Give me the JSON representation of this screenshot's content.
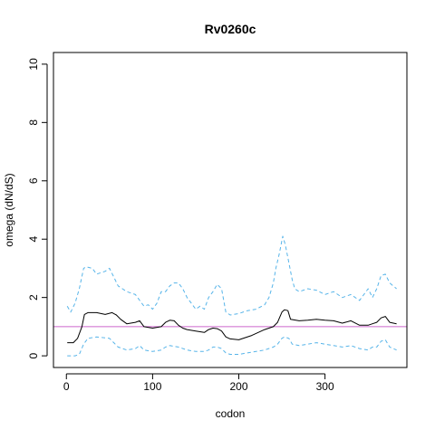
{
  "chart_data": {
    "type": "line",
    "title": "Rv0260c",
    "xlabel": "codon",
    "ylabel": "omega (dN/dS)",
    "xlim": [
      -15,
      395
    ],
    "ylim": [
      -0.4,
      10.4
    ],
    "xticks": [
      0,
      100,
      200,
      300
    ],
    "yticks": [
      0,
      2,
      4,
      6,
      8,
      10
    ],
    "grid": false,
    "legend": "none",
    "reference_line": {
      "y": 1,
      "color": "#cc66cc"
    },
    "series": [
      {
        "style": "solid",
        "color": "#000000",
        "x": [
          1,
          8,
          13,
          18,
          21,
          25,
          35,
          45,
          53,
          58,
          63,
          70,
          80,
          85,
          90,
          100,
          110,
          115,
          120,
          125,
          130,
          135,
          140,
          150,
          160,
          165,
          170,
          175,
          180,
          185,
          190,
          200,
          215,
          230,
          240,
          245,
          250,
          253,
          257,
          260,
          270,
          280,
          290,
          300,
          310,
          320,
          330,
          340,
          350,
          355,
          360,
          365,
          370,
          375,
          383
        ],
        "y": [
          0.45,
          0.45,
          0.6,
          1.0,
          1.42,
          1.48,
          1.48,
          1.42,
          1.48,
          1.4,
          1.25,
          1.1,
          1.15,
          1.2,
          1.0,
          0.95,
          1.0,
          1.15,
          1.22,
          1.2,
          1.05,
          0.95,
          0.9,
          0.85,
          0.8,
          0.9,
          0.95,
          0.93,
          0.85,
          0.65,
          0.58,
          0.55,
          0.7,
          0.9,
          1.0,
          1.15,
          1.5,
          1.58,
          1.55,
          1.25,
          1.2,
          1.22,
          1.25,
          1.22,
          1.2,
          1.12,
          1.2,
          1.05,
          1.05,
          1.1,
          1.15,
          1.3,
          1.35,
          1.15,
          1.1
        ]
      },
      {
        "style": "dashed",
        "color": "#56b4e9",
        "x": [
          1,
          5,
          10,
          15,
          20,
          23,
          30,
          35,
          40,
          45,
          50,
          55,
          60,
          65,
          70,
          80,
          90,
          95,
          100,
          105,
          110,
          115,
          120,
          125,
          130,
          135,
          140,
          145,
          150,
          155,
          160,
          165,
          170,
          175,
          180,
          185,
          190,
          200,
          210,
          220,
          230,
          235,
          240,
          243,
          247,
          251,
          254,
          258,
          262,
          265,
          270,
          280,
          290,
          300,
          310,
          320,
          330,
          340,
          350,
          355,
          360,
          365,
          370,
          375,
          383
        ],
        "y": [
          1.7,
          1.5,
          1.8,
          2.3,
          3.0,
          3.05,
          3.0,
          2.8,
          2.85,
          2.9,
          3.0,
          2.7,
          2.4,
          2.3,
          2.2,
          2.1,
          1.7,
          1.75,
          1.6,
          1.8,
          2.2,
          2.2,
          2.4,
          2.5,
          2.5,
          2.3,
          2.0,
          1.8,
          1.6,
          1.7,
          1.6,
          2.0,
          2.2,
          2.45,
          2.3,
          1.5,
          1.4,
          1.45,
          1.55,
          1.6,
          1.75,
          2.0,
          2.5,
          3.0,
          3.5,
          4.1,
          3.8,
          3.2,
          2.6,
          2.3,
          2.2,
          2.3,
          2.25,
          2.1,
          2.2,
          2.0,
          2.1,
          1.9,
          2.3,
          2.0,
          2.3,
          2.75,
          2.8,
          2.5,
          2.3
        ]
      },
      {
        "style": "dashed",
        "color": "#56b4e9",
        "x": [
          1,
          10,
          15,
          20,
          25,
          35,
          50,
          55,
          60,
          70,
          80,
          85,
          90,
          100,
          110,
          115,
          120,
          130,
          140,
          150,
          160,
          165,
          170,
          175,
          180,
          185,
          190,
          200,
          210,
          220,
          230,
          240,
          245,
          250,
          253,
          258,
          262,
          270,
          280,
          290,
          300,
          310,
          320,
          330,
          340,
          350,
          355,
          360,
          365,
          370,
          375,
          383
        ],
        "y": [
          0.0,
          0.0,
          0.05,
          0.4,
          0.6,
          0.65,
          0.6,
          0.45,
          0.3,
          0.2,
          0.25,
          0.35,
          0.2,
          0.15,
          0.2,
          0.3,
          0.35,
          0.3,
          0.2,
          0.15,
          0.15,
          0.2,
          0.3,
          0.3,
          0.25,
          0.1,
          0.05,
          0.05,
          0.1,
          0.15,
          0.2,
          0.3,
          0.4,
          0.6,
          0.65,
          0.6,
          0.4,
          0.35,
          0.4,
          0.45,
          0.4,
          0.35,
          0.3,
          0.35,
          0.25,
          0.2,
          0.3,
          0.3,
          0.5,
          0.55,
          0.3,
          0.2
        ]
      }
    ]
  }
}
